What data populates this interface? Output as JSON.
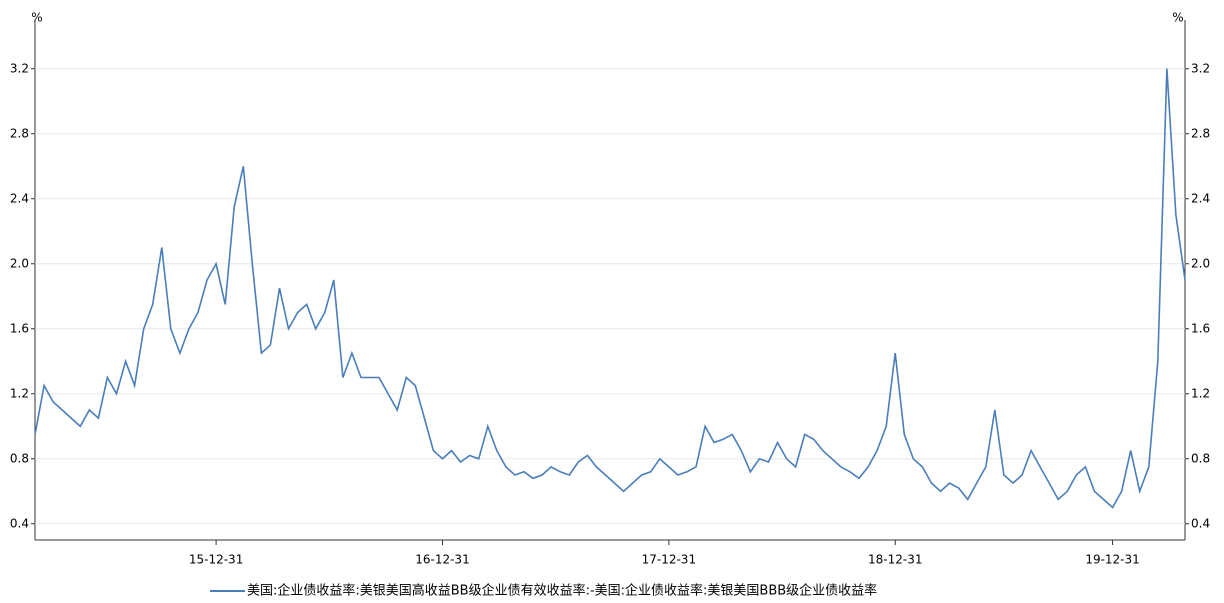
{
  "chart_data": {
    "type": "line",
    "ylabel": "%",
    "y2label": "%",
    "categories": [
      null,
      null,
      null,
      null,
      null,
      null,
      null,
      null,
      null,
      null,
      null,
      null,
      null,
      null,
      null,
      null,
      null,
      null,
      null,
      null,
      "15-12-31",
      null,
      null,
      null,
      null,
      null,
      null,
      null,
      null,
      null,
      null,
      null,
      null,
      null,
      null,
      null,
      null,
      null,
      null,
      null,
      null,
      null,
      null,
      null,
      null,
      "16-12-31",
      null,
      null,
      null,
      null,
      null,
      null,
      null,
      null,
      null,
      null,
      null,
      null,
      null,
      null,
      null,
      null,
      null,
      null,
      null,
      null,
      null,
      null,
      null,
      null,
      "17-12-31",
      null,
      null,
      null,
      null,
      null,
      null,
      null,
      null,
      null,
      null,
      null,
      null,
      null,
      null,
      null,
      null,
      null,
      null,
      null,
      null,
      null,
      null,
      null,
      null,
      "18-12-31",
      null,
      null,
      null,
      null,
      null,
      null,
      null,
      null,
      null,
      null,
      null,
      null,
      null,
      null,
      null,
      null,
      null,
      null,
      null,
      null,
      null,
      null,
      null,
      "19-12-31",
      null,
      null,
      null,
      null,
      null,
      null,
      null,
      null
    ],
    "series": [
      {
        "name": "美国:企业债收益率:美银美国高收益BB级企业债有效收益率:-美国:企业债收益率:美银美国BBB级企业债收益率",
        "color": "#4a7ebb",
        "values": [
          0.95,
          1.25,
          1.15,
          1.1,
          1.05,
          1.0,
          1.1,
          1.05,
          1.3,
          1.2,
          1.4,
          1.25,
          1.6,
          1.75,
          2.1,
          1.6,
          1.45,
          1.6,
          1.7,
          1.9,
          2.0,
          1.75,
          2.35,
          2.6,
          2.0,
          1.45,
          1.5,
          1.85,
          1.6,
          1.7,
          1.75,
          1.6,
          1.7,
          1.9,
          1.3,
          1.45,
          1.3,
          1.3,
          1.3,
          1.2,
          1.1,
          1.3,
          1.25,
          1.05,
          0.85,
          0.8,
          0.85,
          0.78,
          0.82,
          0.8,
          1.0,
          0.85,
          0.75,
          0.7,
          0.72,
          0.68,
          0.7,
          0.75,
          0.72,
          0.7,
          0.78,
          0.82,
          0.75,
          0.7,
          0.65,
          0.6,
          0.65,
          0.7,
          0.72,
          0.8,
          0.75,
          0.7,
          0.72,
          0.75,
          1.0,
          0.9,
          0.92,
          0.95,
          0.85,
          0.72,
          0.8,
          0.78,
          0.9,
          0.8,
          0.75,
          0.95,
          0.92,
          0.85,
          0.8,
          0.75,
          0.72,
          0.68,
          0.75,
          0.85,
          1.0,
          1.45,
          0.95,
          0.8,
          0.75,
          0.65,
          0.6,
          0.65,
          0.62,
          0.55,
          0.65,
          0.75,
          1.1,
          0.7,
          0.65,
          0.7,
          0.85,
          0.75,
          0.65,
          0.55,
          0.6,
          0.7,
          0.75,
          0.6,
          0.55,
          0.5,
          0.6,
          0.85,
          0.6,
          0.75,
          1.4,
          3.2,
          2.3,
          1.9
        ]
      }
    ],
    "ylim": [
      0.3,
      3.5
    ],
    "yticks": [
      0.4,
      0.8,
      1.2,
      1.6,
      {
        "value": 2,
        "label": "2.0"
      },
      2.4,
      2.8,
      3.2
    ],
    "y2lim": [
      0.3,
      3.5
    ],
    "y2ticks": [
      0.4,
      0.8,
      1.2,
      1.6,
      {
        "value": 2,
        "label": "2.0"
      },
      2.4,
      2.8,
      3.2
    ],
    "grid": true
  }
}
